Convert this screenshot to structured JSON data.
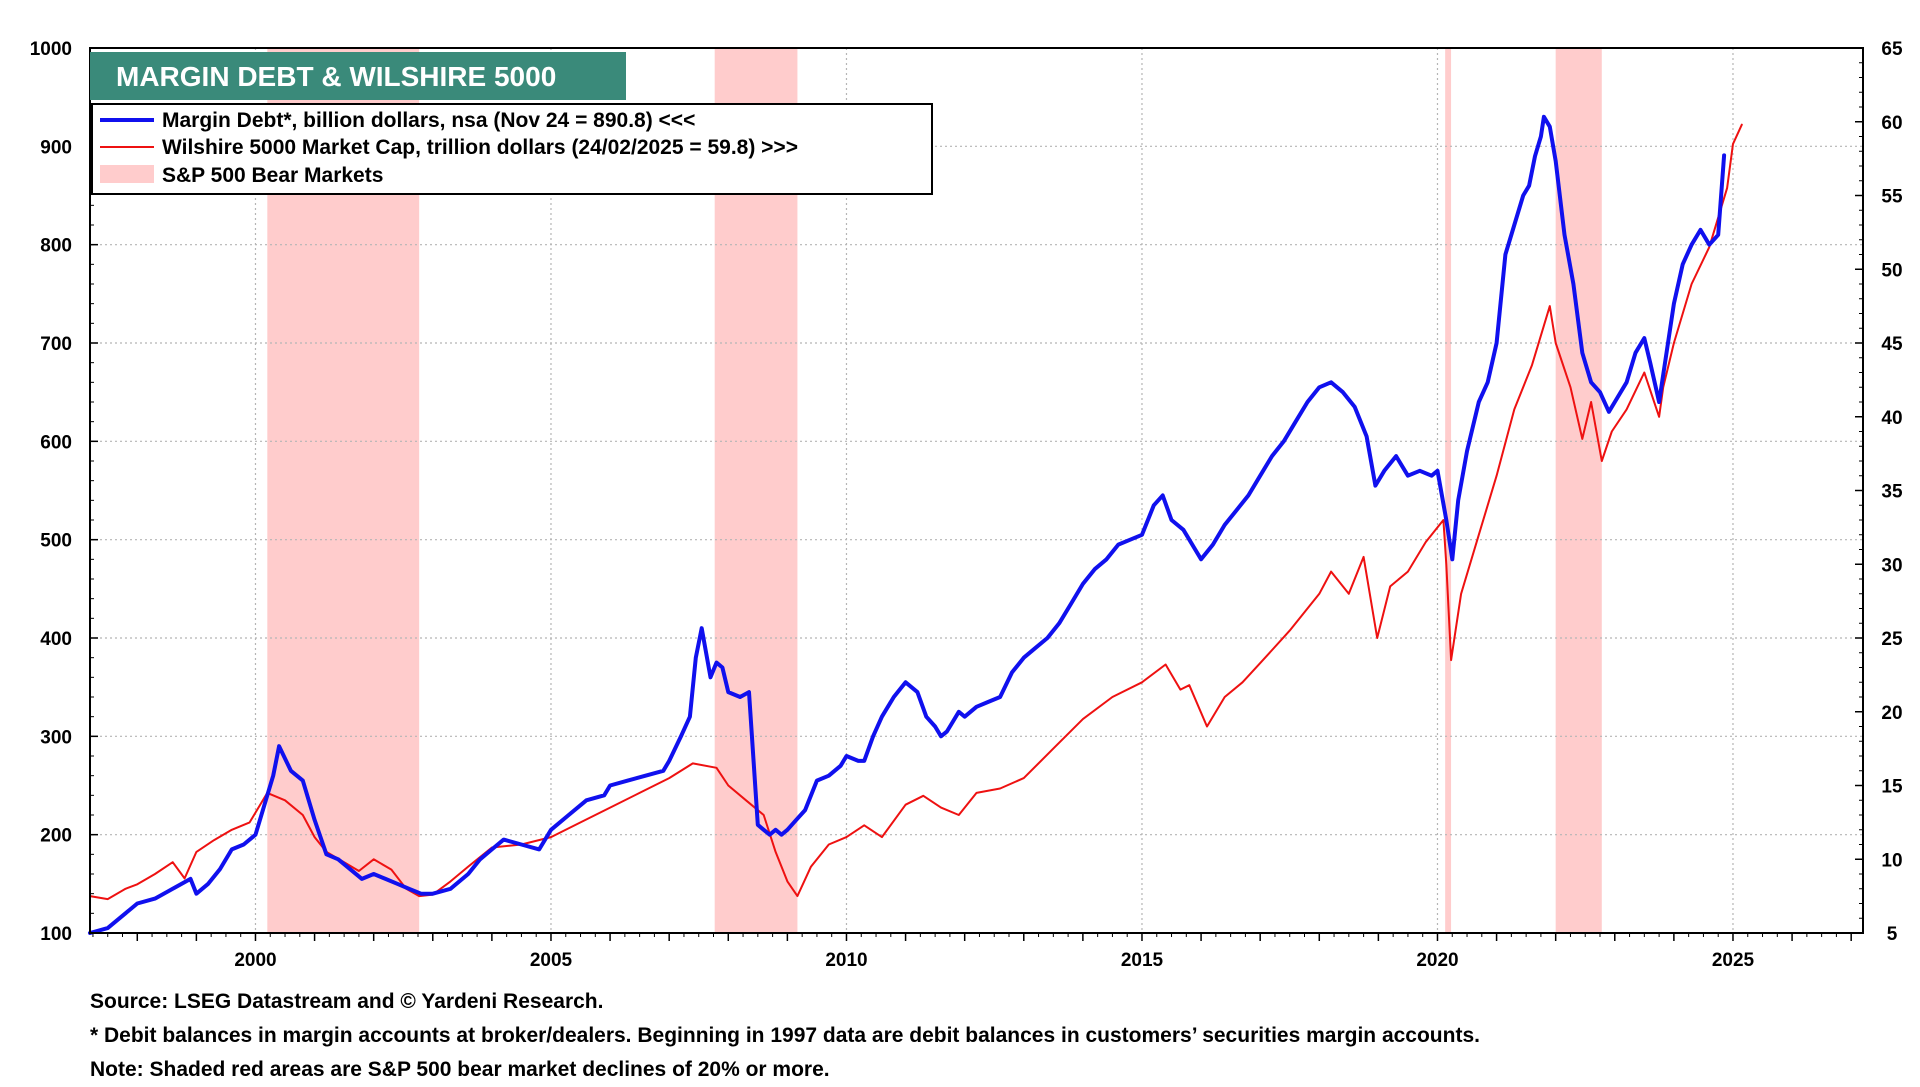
{
  "chart_data": {
    "type": "line",
    "title": "MARGIN DEBT & WILSHIRE 5000",
    "colors": {
      "title_bg": "#3a8a7a",
      "margin_debt": "#1010ee",
      "wilshire": "#ee1111",
      "bear_shade": "#ffcccc"
    },
    "x_range": [
      1997.2,
      2027.2
    ],
    "x_ticks": [
      "2000",
      "2005",
      "2010",
      "2015",
      "2020",
      "2025"
    ],
    "left_axis": {
      "ylim": [
        100,
        1000
      ],
      "ticks": [
        "100",
        "200",
        "300",
        "400",
        "500",
        "600",
        "700",
        "800",
        "900",
        "1000"
      ]
    },
    "right_axis": {
      "ylim": [
        5,
        65
      ],
      "ticks": [
        "5",
        "10",
        "15",
        "20",
        "25",
        "30",
        "35",
        "40",
        "45",
        "50",
        "55",
        "60",
        "65"
      ]
    },
    "legend": {
      "margin_debt": "Margin Debt*, billion dollars, nsa (Nov 24 = 890.8) <<<",
      "wilshire": "Wilshire 5000 Market Cap, trillion dollars  (24/02/2025 = 59.8) >>>",
      "bear": "S&P 500 Bear Markets"
    },
    "bear_markets": [
      [
        2000.2,
        2002.77
      ],
      [
        2007.77,
        2009.17
      ],
      [
        2020.13,
        2020.23
      ],
      [
        2022.0,
        2022.78
      ]
    ],
    "series": [
      {
        "name": "Margin Debt",
        "axis": "left",
        "x": [
          1997.2,
          1997.5,
          1997.8,
          1998.0,
          1998.3,
          1998.6,
          1998.9,
          1999.0,
          1999.2,
          1999.4,
          1999.6,
          1999.8,
          2000.0,
          2000.2,
          2000.3,
          2000.4,
          2000.6,
          2000.8,
          2001.0,
          2001.2,
          2001.4,
          2001.6,
          2001.8,
          2002.0,
          2002.2,
          2002.4,
          2002.6,
          2002.8,
          2003.0,
          2003.3,
          2003.6,
          2003.8,
          2004.0,
          2004.2,
          2004.5,
          2004.8,
          2005.0,
          2005.3,
          2005.6,
          2005.9,
          2006.0,
          2006.3,
          2006.6,
          2006.9,
          2007.0,
          2007.2,
          2007.35,
          2007.45,
          2007.55,
          2007.7,
          2007.8,
          2007.9,
          2008.0,
          2008.2,
          2008.35,
          2008.5,
          2008.6,
          2008.7,
          2008.8,
          2008.9,
          2009.0,
          2009.15,
          2009.3,
          2009.5,
          2009.7,
          2009.9,
          2010.0,
          2010.2,
          2010.3,
          2010.45,
          2010.6,
          2010.8,
          2011.0,
          2011.2,
          2011.35,
          2011.5,
          2011.6,
          2011.7,
          2011.8,
          2011.9,
          2012.0,
          2012.2,
          2012.4,
          2012.6,
          2012.8,
          2013.0,
          2013.2,
          2013.4,
          2013.6,
          2013.8,
          2014.0,
          2014.2,
          2014.4,
          2014.6,
          2014.8,
          2015.0,
          2015.2,
          2015.35,
          2015.5,
          2015.7,
          2015.9,
          2016.0,
          2016.2,
          2016.4,
          2016.6,
          2016.8,
          2017.0,
          2017.2,
          2017.4,
          2017.6,
          2017.8,
          2018.0,
          2018.2,
          2018.4,
          2018.6,
          2018.8,
          2018.95,
          2019.1,
          2019.3,
          2019.5,
          2019.7,
          2019.9,
          2020.0,
          2020.15,
          2020.25,
          2020.35,
          2020.5,
          2020.7,
          2020.85,
          2021.0,
          2021.15,
          2021.3,
          2021.45,
          2021.55,
          2021.65,
          2021.75,
          2021.8,
          2021.9,
          2022.0,
          2022.15,
          2022.3,
          2022.45,
          2022.6,
          2022.75,
          2022.9,
          2023.0,
          2023.2,
          2023.35,
          2023.5,
          2023.6,
          2023.75,
          2023.9,
          2024.0,
          2024.15,
          2024.3,
          2024.45,
          2024.6,
          2024.75,
          2024.85
        ],
        "values": [
          100,
          105,
          120,
          130,
          135,
          145,
          155,
          140,
          150,
          165,
          185,
          190,
          200,
          240,
          260,
          290,
          265,
          255,
          215,
          180,
          175,
          165,
          155,
          160,
          155,
          150,
          145,
          140,
          140,
          145,
          160,
          175,
          185,
          195,
          190,
          185,
          205,
          220,
          235,
          240,
          250,
          255,
          260,
          265,
          275,
          300,
          320,
          380,
          410,
          360,
          375,
          370,
          345,
          340,
          345,
          210,
          205,
          200,
          205,
          200,
          205,
          215,
          225,
          255,
          260,
          270,
          280,
          275,
          275,
          300,
          320,
          340,
          355,
          345,
          320,
          310,
          300,
          305,
          315,
          325,
          320,
          330,
          335,
          340,
          365,
          380,
          390,
          400,
          415,
          435,
          455,
          470,
          480,
          495,
          500,
          505,
          535,
          545,
          520,
          510,
          490,
          480,
          495,
          515,
          530,
          545,
          565,
          585,
          600,
          620,
          640,
          655,
          660,
          650,
          635,
          605,
          555,
          570,
          585,
          565,
          570,
          565,
          570,
          520,
          480,
          540,
          590,
          640,
          660,
          700,
          790,
          820,
          850,
          860,
          890,
          910,
          930,
          920,
          885,
          810,
          760,
          690,
          660,
          650,
          630,
          640,
          660,
          690,
          705,
          680,
          640,
          700,
          740,
          780,
          800,
          815,
          800,
          810,
          890.8
        ]
      },
      {
        "name": "Wilshire 5000",
        "axis": "right",
        "x": [
          1997.2,
          1997.5,
          1997.8,
          1998.0,
          1998.3,
          1998.6,
          1998.8,
          1999.0,
          1999.3,
          1999.6,
          1999.9,
          2000.2,
          2000.5,
          2000.8,
          2001.0,
          2001.2,
          2001.5,
          2001.75,
          2002.0,
          2002.3,
          2002.55,
          2002.77,
          2003.0,
          2003.3,
          2003.6,
          2004.0,
          2004.5,
          2005.0,
          2005.5,
          2006.0,
          2006.5,
          2007.0,
          2007.4,
          2007.8,
          2008.0,
          2008.3,
          2008.6,
          2008.8,
          2009.0,
          2009.17,
          2009.4,
          2009.7,
          2010.0,
          2010.3,
          2010.6,
          2011.0,
          2011.3,
          2011.6,
          2011.9,
          2012.2,
          2012.6,
          2013.0,
          2013.5,
          2014.0,
          2014.5,
          2015.0,
          2015.4,
          2015.65,
          2015.8,
          2016.1,
          2016.4,
          2016.7,
          2017.0,
          2017.5,
          2018.0,
          2018.2,
          2018.5,
          2018.75,
          2018.98,
          2019.2,
          2019.5,
          2019.8,
          2020.1,
          2020.15,
          2020.23,
          2020.4,
          2020.7,
          2021.0,
          2021.3,
          2021.6,
          2021.9,
          2022.0,
          2022.25,
          2022.45,
          2022.6,
          2022.78,
          2022.95,
          2023.2,
          2023.5,
          2023.75,
          2023.82,
          2024.0,
          2024.3,
          2024.6,
          2024.9,
          2025.0,
          2025.15
        ],
        "values": [
          7.5,
          7.3,
          8.0,
          8.3,
          9.0,
          9.8,
          8.7,
          10.5,
          11.3,
          12.0,
          12.5,
          14.5,
          14.0,
          13.0,
          11.5,
          10.5,
          9.8,
          9.2,
          10.0,
          9.3,
          8.0,
          7.5,
          7.6,
          8.5,
          9.5,
          10.8,
          11.0,
          11.5,
          12.5,
          13.5,
          14.5,
          15.5,
          16.5,
          16.2,
          15.0,
          14.0,
          13.0,
          10.5,
          8.5,
          7.5,
          9.5,
          11.0,
          11.5,
          12.3,
          11.5,
          13.7,
          14.3,
          13.5,
          13.0,
          14.5,
          14.8,
          15.5,
          17.5,
          19.5,
          21.0,
          22.0,
          23.2,
          21.5,
          21.8,
          19.0,
          21.0,
          22.0,
          23.3,
          25.5,
          28.0,
          29.5,
          28.0,
          30.5,
          25.0,
          28.5,
          29.5,
          31.5,
          33.0,
          30.0,
          23.5,
          28.0,
          32.0,
          36.0,
          40.5,
          43.5,
          47.5,
          45.0,
          42.0,
          38.5,
          41.0,
          37.0,
          39.0,
          40.5,
          43.0,
          40.0,
          42.0,
          45.0,
          49.0,
          51.5,
          55.5,
          58.5,
          59.8
        ]
      }
    ]
  },
  "footnotes": {
    "source": "Source: LSEG Datastream and © Yardeni Research.",
    "star": "* Debit balances in margin accounts at broker/dealers. Beginning in 1997 data are debit balances in customers’ securities margin accounts.",
    "note": "Note: Shaded red areas are S&P 500 bear market declines of 20% or more."
  }
}
